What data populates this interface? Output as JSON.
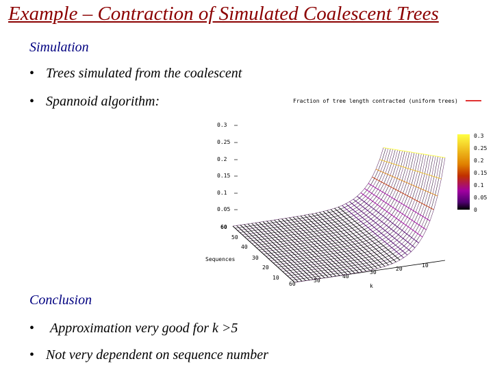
{
  "slide": {
    "title": "Example – Contraction of Simulated Coalescent Trees",
    "simulation_heading": "Simulation",
    "simulation_bullets": [
      "Trees simulated from the coalescent",
      "Spannoid algorithm:"
    ],
    "conclusion_heading": "Conclusion",
    "conclusion_bullets": [
      "Approximation very good for k >5",
      "Not very dependent on sequence number"
    ],
    "bullet_glyph": "•"
  },
  "chart_data": {
    "type": "surface3d",
    "title": "Fraction of tree length contracted (uniform trees)",
    "z_ticks": [
      "0.3",
      "0.25",
      "0.2",
      "0.15",
      "0.1",
      "0.05"
    ],
    "sequences_label": "Sequences",
    "sequences_ticks": [
      "60",
      "50",
      "40",
      "30",
      "20",
      "10"
    ],
    "k_label": "k",
    "k_ticks": [
      "60",
      "50",
      "40",
      "30",
      "20",
      "10"
    ],
    "colorbar_ticks": [
      "0.3",
      "0.25",
      "0.2",
      "0.15",
      "0.1",
      "0.05",
      "0"
    ],
    "colorbar_colors": [
      "#ffff44",
      "#f0c020",
      "#e08000",
      "#c03000",
      "#a000a0",
      "#500070",
      "#000000"
    ]
  }
}
